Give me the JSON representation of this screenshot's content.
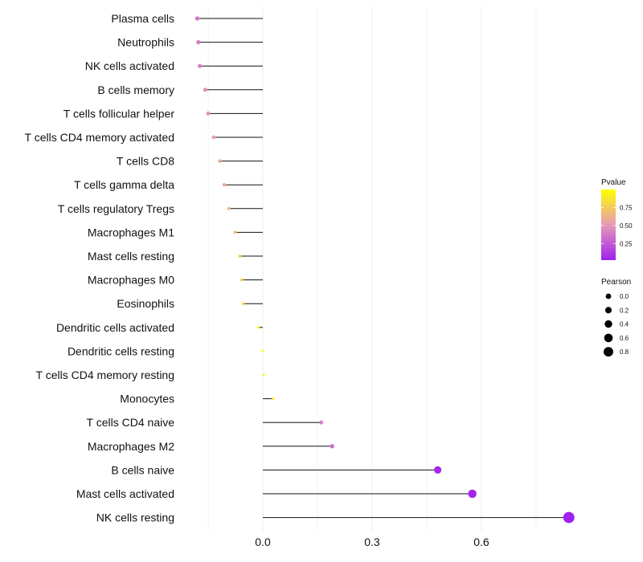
{
  "chart_data": {
    "type": "lollipop",
    "title": "",
    "xlabel": "",
    "ylabel": "",
    "xlim": [
      -0.18,
      0.84
    ],
    "x_ticks": [
      {
        "value": 0.0,
        "label": "0.0"
      },
      {
        "value": 0.3,
        "label": "0.3"
      },
      {
        "value": 0.6,
        "label": "0.6"
      }
    ],
    "categories": [
      "Plasma cells",
      "Neutrophils",
      "NK cells activated",
      "B cells memory",
      "T cells follicular helper",
      "T cells CD4 memory activated",
      "T cells CD8",
      "T cells gamma delta",
      "T cells regulatory  Tregs",
      "Macrophages M1",
      "Mast cells resting",
      "Macrophages M0",
      "Eosinophils",
      "Dendritic cells activated",
      "Dendritic cells resting",
      "T cells CD4 memory resting",
      "Monocytes",
      "T cells CD4 naive",
      "Macrophages M2",
      "B cells naive",
      "Mast cells activated",
      "NK cells resting"
    ],
    "values": [
      -0.18,
      -0.177,
      -0.173,
      -0.158,
      -0.15,
      -0.135,
      -0.118,
      -0.106,
      -0.093,
      -0.076,
      -0.063,
      -0.058,
      -0.054,
      -0.013,
      0.0,
      0.002,
      0.028,
      0.16,
      0.19,
      0.48,
      0.575,
      0.84
    ],
    "pvalues": [
      0.36,
      0.38,
      0.4,
      0.45,
      0.47,
      0.52,
      0.56,
      0.6,
      0.64,
      0.7,
      0.76,
      0.78,
      0.8,
      0.96,
      1.0,
      0.99,
      0.88,
      0.38,
      0.32,
      0.03,
      0.02,
      0.01
    ],
    "legend_pvalue": {
      "title": "Pvalue",
      "range": [
        0.02,
        1.0
      ],
      "colors": [
        "#a020f0",
        "#ffff00"
      ],
      "ticks": [
        {
          "value": 0.25,
          "label": "0.25"
        },
        {
          "value": 0.5,
          "label": "0.50"
        },
        {
          "value": 0.75,
          "label": "0.75"
        }
      ]
    },
    "legend_pearson": {
      "title": "Pearson",
      "entries": [
        {
          "value": 0.0,
          "label": "0.0"
        },
        {
          "value": 0.2,
          "label": "0.2"
        },
        {
          "value": 0.4,
          "label": "0.4"
        },
        {
          "value": 0.6,
          "label": "0.6"
        },
        {
          "value": 0.8,
          "label": "0.8"
        }
      ]
    },
    "grid": true,
    "legend_position": "right"
  }
}
